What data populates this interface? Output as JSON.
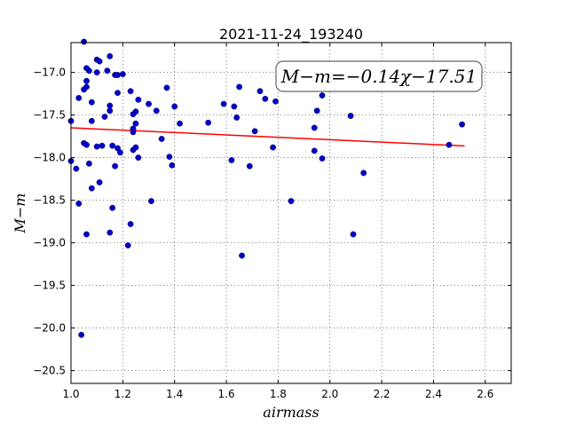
{
  "chart_data": {
    "type": "scatter",
    "title": "2021-11-24_193240",
    "xlabel": "airmass",
    "ylabel": "M−m",
    "xlim": [
      1.0,
      2.7
    ],
    "ylim": [
      -20.65,
      -16.65
    ],
    "y_inverted": true,
    "grid": true,
    "xticks": [
      1.0,
      1.2,
      1.4,
      1.6,
      1.8,
      2.0,
      2.2,
      2.4,
      2.6
    ],
    "xtick_labels": [
      "1.0",
      "1.2",
      "1.4",
      "1.6",
      "1.8",
      "2.0",
      "2.2",
      "2.4",
      "2.6"
    ],
    "yticks": [
      -17.0,
      -17.5,
      -18.0,
      -18.5,
      -19.0,
      -19.5,
      -20.0,
      -20.5
    ],
    "ytick_labels": [
      "−17.0",
      "−17.5",
      "−18.0",
      "−18.5",
      "−19.0",
      "−19.5",
      "−20.0",
      "−20.5"
    ],
    "annotation": "M−m=−0.14χ−17.51",
    "marker_color": "#0000cc",
    "fit_color": "#ff0000",
    "fit": {
      "slope": -0.14,
      "intercept": -17.51,
      "x_range": [
        1.0,
        2.52
      ]
    },
    "points": [
      [
        1.05,
        -16.64
      ],
      [
        1.06,
        -16.95
      ],
      [
        1.07,
        -16.98
      ],
      [
        1.06,
        -17.1
      ],
      [
        1.06,
        -17.17
      ],
      [
        1.05,
        -17.2
      ],
      [
        1.1,
        -16.85
      ],
      [
        1.11,
        -16.87
      ],
      [
        1.1,
        -17.0
      ],
      [
        1.14,
        -16.98
      ],
      [
        1.15,
        -16.81
      ],
      [
        1.17,
        -17.03
      ],
      [
        1.18,
        -17.03
      ],
      [
        1.2,
        -17.02
      ],
      [
        1.18,
        -17.24
      ],
      [
        1.23,
        -17.22
      ],
      [
        1.0,
        -17.57
      ],
      [
        1.03,
        -17.3
      ],
      [
        1.08,
        -17.35
      ],
      [
        1.08,
        -17.57
      ],
      [
        1.13,
        -17.52
      ],
      [
        1.15,
        -17.39
      ],
      [
        1.15,
        -17.45
      ],
      [
        1.24,
        -17.49
      ],
      [
        1.25,
        -17.46
      ],
      [
        1.26,
        -17.32
      ],
      [
        1.3,
        -17.37
      ],
      [
        1.33,
        -17.45
      ],
      [
        1.25,
        -17.6
      ],
      [
        1.24,
        -17.66
      ],
      [
        1.24,
        -17.7
      ],
      [
        1.05,
        -17.83
      ],
      [
        1.06,
        -17.85
      ],
      [
        1.1,
        -17.87
      ],
      [
        1.12,
        -17.86
      ],
      [
        1.16,
        -17.86
      ],
      [
        1.18,
        -17.89
      ],
      [
        1.19,
        -17.94
      ],
      [
        1.24,
        -17.91
      ],
      [
        1.25,
        -17.88
      ],
      [
        1.26,
        -18.0
      ],
      [
        1.17,
        -18.1
      ],
      [
        1.07,
        -18.07
      ],
      [
        1.08,
        -18.36
      ],
      [
        1.11,
        -18.29
      ],
      [
        1.02,
        -18.13
      ],
      [
        1.0,
        -18.04
      ],
      [
        1.03,
        -18.54
      ],
      [
        1.16,
        -18.59
      ],
      [
        1.23,
        -18.78
      ],
      [
        1.15,
        -18.88
      ],
      [
        1.06,
        -18.9
      ],
      [
        1.22,
        -19.03
      ],
      [
        1.31,
        -18.51
      ],
      [
        1.37,
        -17.18
      ],
      [
        1.4,
        -17.4
      ],
      [
        1.42,
        -17.6
      ],
      [
        1.35,
        -17.78
      ],
      [
        1.38,
        -17.99
      ],
      [
        1.39,
        -18.09
      ],
      [
        1.53,
        -17.59
      ],
      [
        1.59,
        -17.37
      ],
      [
        1.63,
        -17.4
      ],
      [
        1.64,
        -17.53
      ],
      [
        1.65,
        -17.17
      ],
      [
        1.73,
        -17.22
      ],
      [
        1.75,
        -17.31
      ],
      [
        1.79,
        -17.34
      ],
      [
        1.71,
        -17.69
      ],
      [
        1.78,
        -17.88
      ],
      [
        1.62,
        -18.03
      ],
      [
        1.69,
        -18.1
      ],
      [
        1.66,
        -19.15
      ],
      [
        1.85,
        -18.51
      ],
      [
        1.97,
        -17.27
      ],
      [
        1.95,
        -17.45
      ],
      [
        1.94,
        -17.65
      ],
      [
        1.94,
        -17.92
      ],
      [
        1.97,
        -18.01
      ],
      [
        2.08,
        -17.51
      ],
      [
        2.13,
        -18.18
      ],
      [
        2.09,
        -18.9
      ],
      [
        2.46,
        -17.85
      ],
      [
        2.51,
        -17.61
      ],
      [
        1.04,
        -20.08
      ]
    ]
  }
}
